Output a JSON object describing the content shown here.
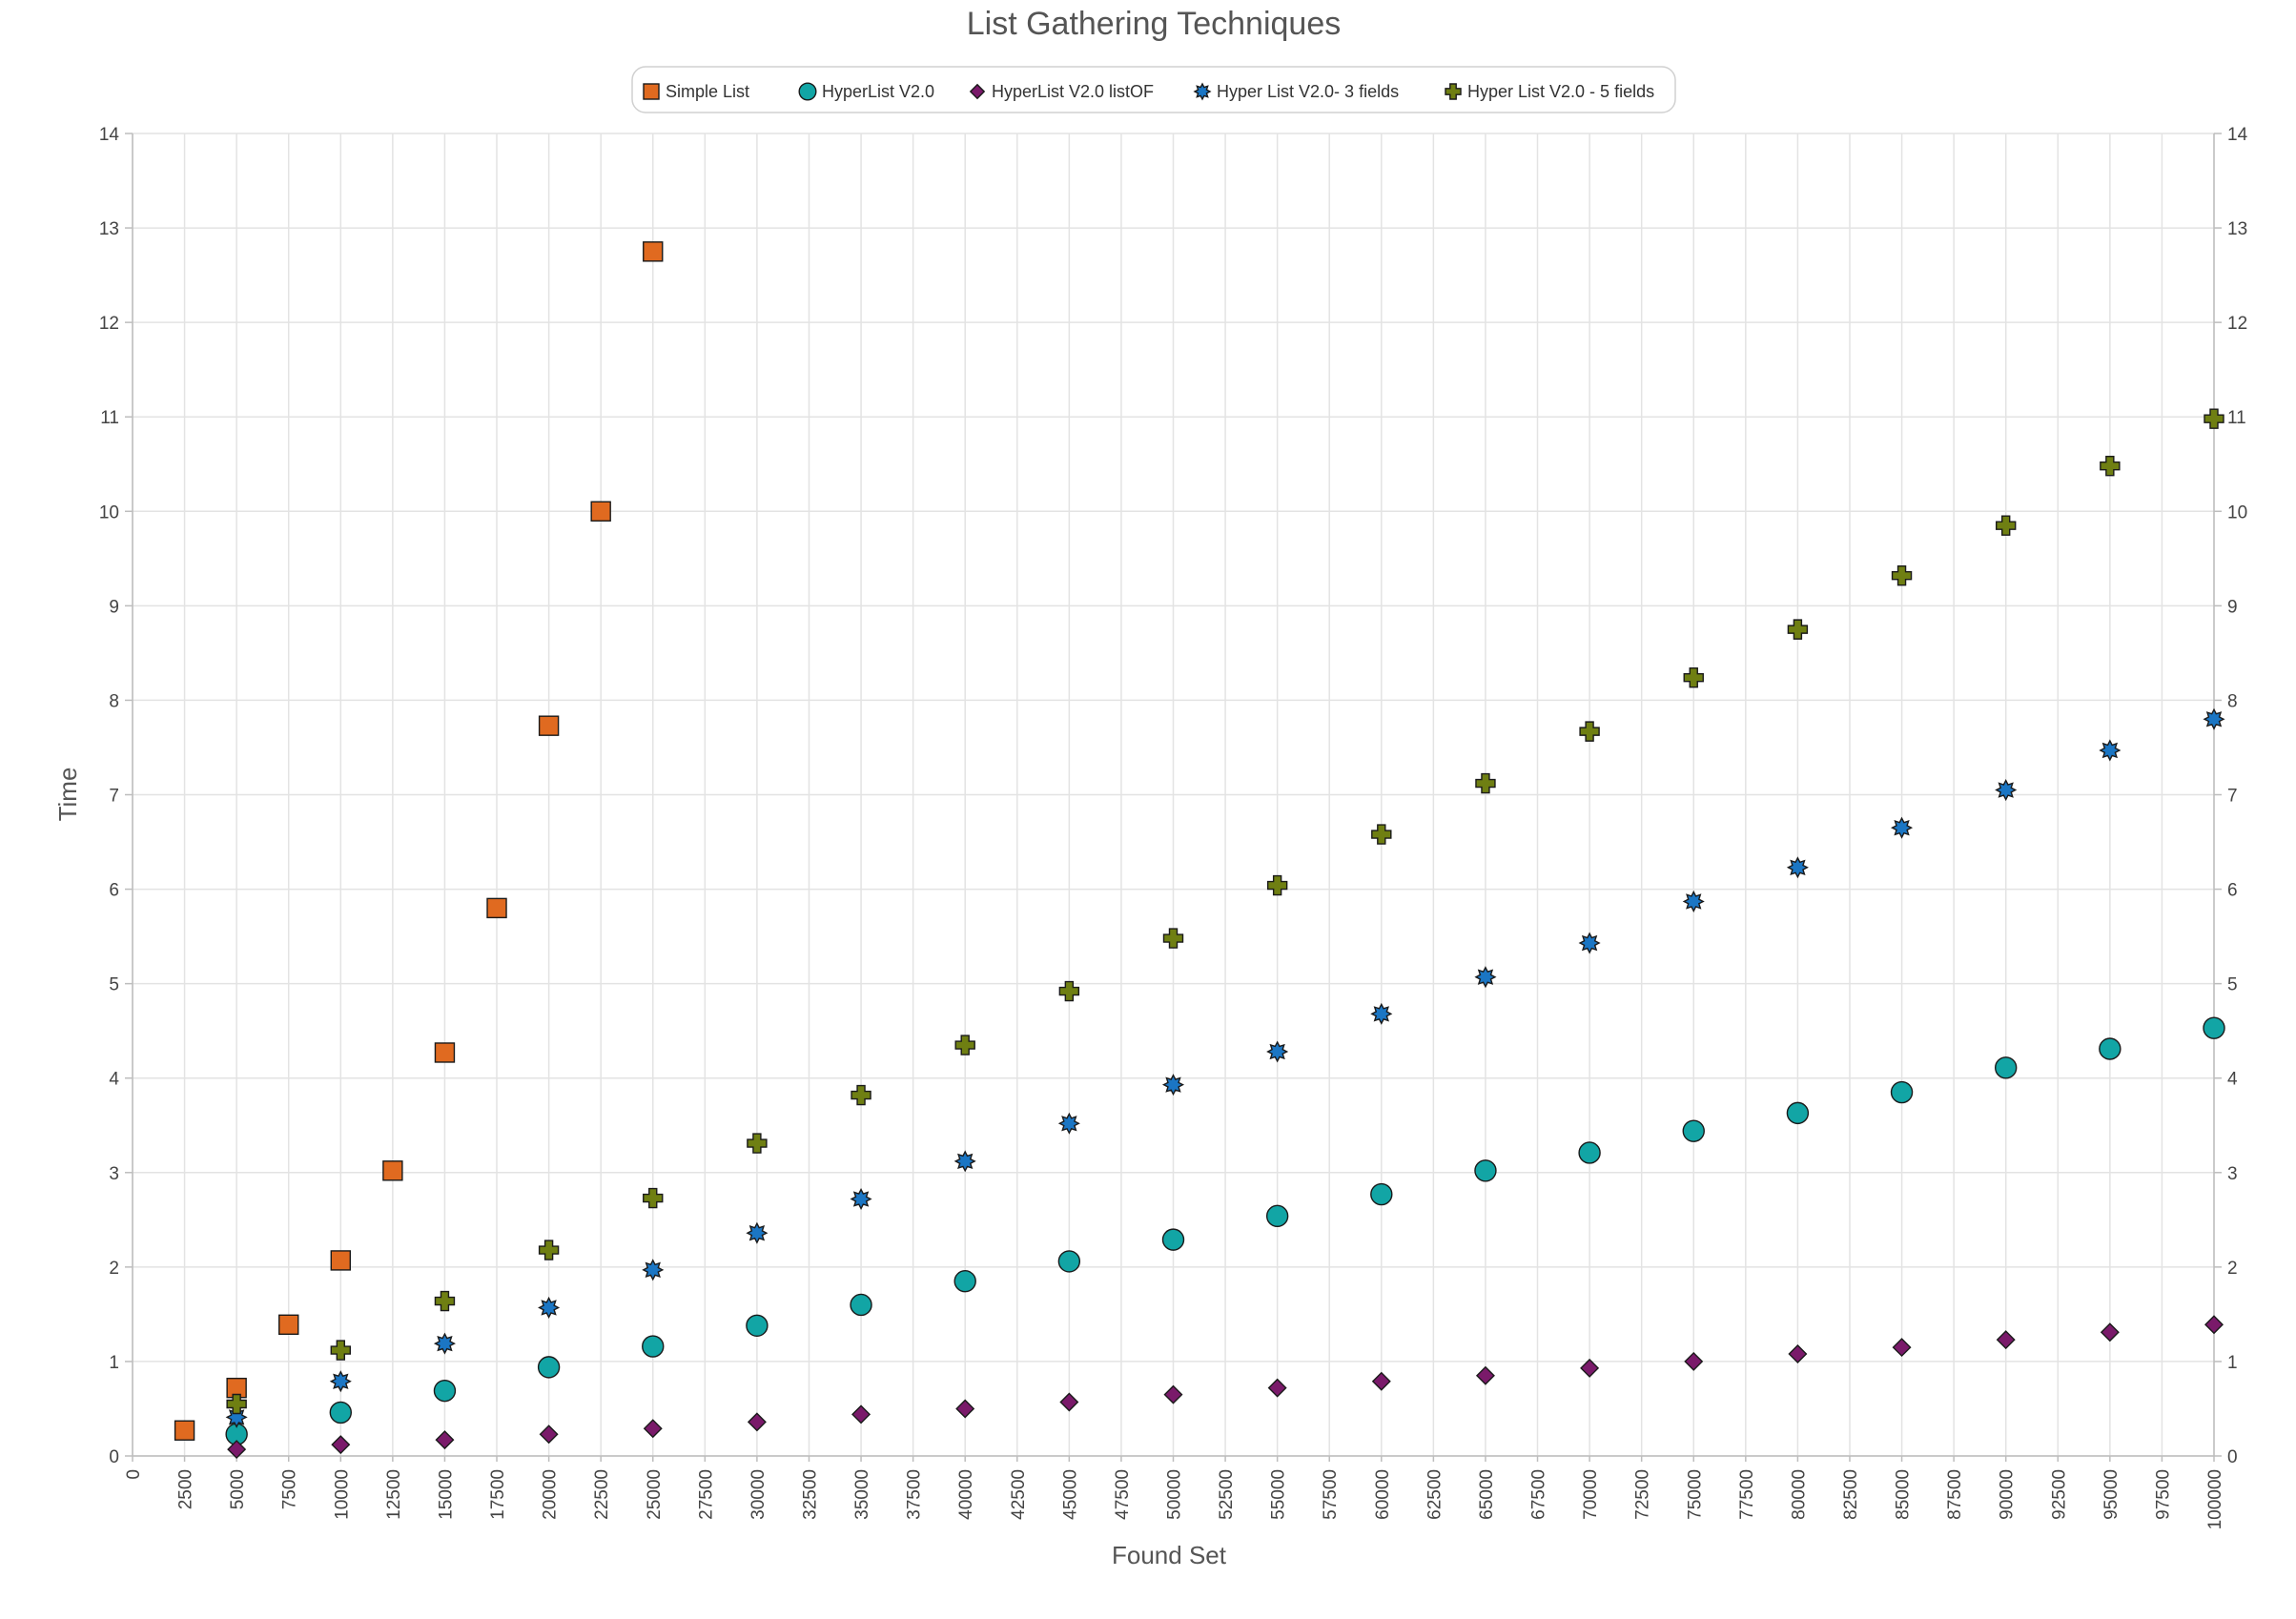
{
  "chart_data": {
    "type": "scatter",
    "title": "List Gathering Techniques",
    "xlabel": "Found Set",
    "ylabel": "Time",
    "xlim": [
      0,
      100000
    ],
    "ylim": [
      0,
      14
    ],
    "x_tick_step": 2500,
    "y_tick_step": 1,
    "grid": true,
    "legend_position": "top-center",
    "series": [
      {
        "name": "Simple List",
        "marker": "square",
        "color": "#e06a20",
        "points": [
          [
            2500,
            0.27
          ],
          [
            5000,
            0.72
          ],
          [
            7500,
            1.39
          ],
          [
            10000,
            2.07
          ],
          [
            12500,
            3.02
          ],
          [
            15000,
            4.27
          ],
          [
            17500,
            5.8
          ],
          [
            20000,
            7.73
          ],
          [
            22500,
            10.0
          ],
          [
            25000,
            12.75
          ]
        ]
      },
      {
        "name": "HyperList V2.0",
        "marker": "circle",
        "color": "#12a5a5",
        "points": [
          [
            5000,
            0.23
          ],
          [
            10000,
            0.46
          ],
          [
            15000,
            0.69
          ],
          [
            20000,
            0.94
          ],
          [
            25000,
            1.16
          ],
          [
            30000,
            1.38
          ],
          [
            35000,
            1.6
          ],
          [
            40000,
            1.85
          ],
          [
            45000,
            2.06
          ],
          [
            50000,
            2.29
          ],
          [
            55000,
            2.54
          ],
          [
            60000,
            2.77
          ],
          [
            65000,
            3.02
          ],
          [
            70000,
            3.21
          ],
          [
            75000,
            3.44
          ],
          [
            80000,
            3.63
          ],
          [
            85000,
            3.85
          ],
          [
            90000,
            4.11
          ],
          [
            95000,
            4.31
          ],
          [
            100000,
            4.53
          ]
        ]
      },
      {
        "name": "HyperList V2.0 listOF",
        "marker": "diamond",
        "color": "#7a1a6a",
        "points": [
          [
            5000,
            0.07
          ],
          [
            10000,
            0.12
          ],
          [
            15000,
            0.17
          ],
          [
            20000,
            0.23
          ],
          [
            25000,
            0.29
          ],
          [
            30000,
            0.36
          ],
          [
            35000,
            0.44
          ],
          [
            40000,
            0.5
          ],
          [
            45000,
            0.57
          ],
          [
            50000,
            0.65
          ],
          [
            55000,
            0.72
          ],
          [
            60000,
            0.79
          ],
          [
            65000,
            0.85
          ],
          [
            70000,
            0.93
          ],
          [
            75000,
            1.0
          ],
          [
            80000,
            1.08
          ],
          [
            85000,
            1.15
          ],
          [
            90000,
            1.23
          ],
          [
            95000,
            1.31
          ],
          [
            100000,
            1.39
          ]
        ]
      },
      {
        "name": "Hyper List V2.0- 3 fields",
        "marker": "star",
        "color": "#1b76c4",
        "points": [
          [
            5000,
            0.41
          ],
          [
            10000,
            0.79
          ],
          [
            15000,
            1.19
          ],
          [
            20000,
            1.57
          ],
          [
            25000,
            1.97
          ],
          [
            30000,
            2.36
          ],
          [
            35000,
            2.72
          ],
          [
            40000,
            3.12
          ],
          [
            45000,
            3.52
          ],
          [
            50000,
            3.93
          ],
          [
            55000,
            4.28
          ],
          [
            60000,
            4.68
          ],
          [
            65000,
            5.07
          ],
          [
            70000,
            5.43
          ],
          [
            75000,
            5.87
          ],
          [
            80000,
            6.23
          ],
          [
            85000,
            6.65
          ],
          [
            90000,
            7.05
          ],
          [
            95000,
            7.47
          ],
          [
            100000,
            7.8
          ]
        ]
      },
      {
        "name": "Hyper List V2.0 - 5 fields",
        "marker": "cross",
        "color": "#6f7f12",
        "points": [
          [
            5000,
            0.55
          ],
          [
            10000,
            1.12
          ],
          [
            15000,
            1.64
          ],
          [
            20000,
            2.18
          ],
          [
            25000,
            2.73
          ],
          [
            30000,
            3.31
          ],
          [
            35000,
            3.82
          ],
          [
            40000,
            4.35
          ],
          [
            45000,
            4.92
          ],
          [
            50000,
            5.48
          ],
          [
            55000,
            6.04
          ],
          [
            60000,
            6.58
          ],
          [
            65000,
            7.12
          ],
          [
            70000,
            7.67
          ],
          [
            75000,
            8.24
          ],
          [
            80000,
            8.75
          ],
          [
            85000,
            9.32
          ],
          [
            90000,
            9.85
          ],
          [
            95000,
            10.48
          ],
          [
            100000,
            10.98
          ]
        ]
      }
    ]
  }
}
